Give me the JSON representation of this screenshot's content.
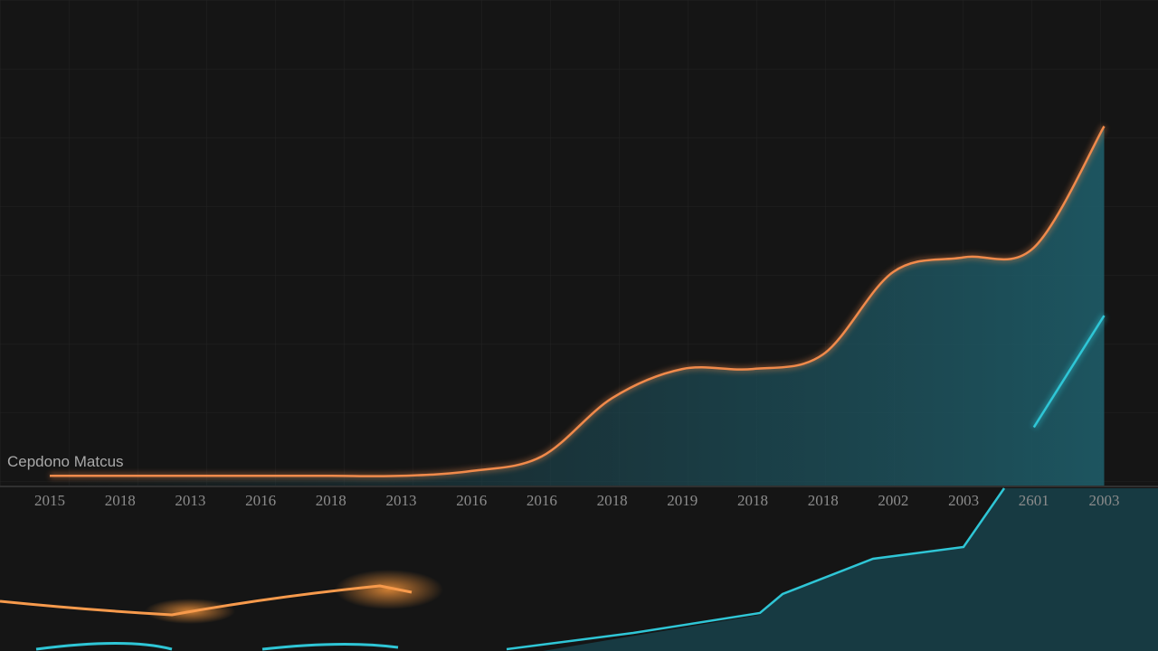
{
  "chart_data": {
    "type": "line",
    "title": "Cepdono Matcus",
    "categories": [
      "2015",
      "2018",
      "2013",
      "2016",
      "2018",
      "2013",
      "2016",
      "2016",
      "2018",
      "2019",
      "2018",
      "2018",
      "2002",
      "2003",
      "2601",
      "2003"
    ],
    "ylim": [
      0,
      100
    ],
    "grid": true,
    "series": [
      {
        "name": "orange",
        "color": "#f08a4b",
        "values": [
          2,
          2,
          2,
          2,
          2,
          2,
          3,
          6,
          18,
          24,
          24,
          27,
          44,
          47,
          49,
          74
        ]
      },
      {
        "name": "cyan",
        "color": "#2fc6d6",
        "values": [
          null,
          null,
          null,
          null,
          null,
          null,
          null,
          null,
          null,
          null,
          null,
          null,
          null,
          null,
          12,
          35
        ]
      }
    ]
  }
}
